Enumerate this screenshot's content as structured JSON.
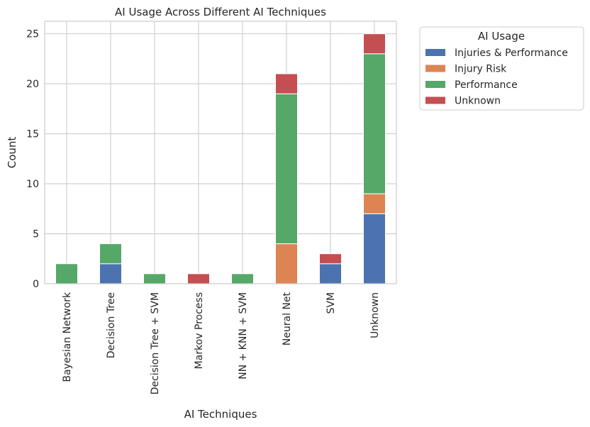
{
  "chart_data": {
    "type": "bar",
    "stacked": true,
    "title": "AI Usage Across Different AI Techniques",
    "xlabel": "AI Techniques",
    "ylabel": "Count",
    "ylim": [
      0,
      26.25
    ],
    "yticks": [
      0,
      5,
      10,
      15,
      20,
      25
    ],
    "grid": true,
    "categories": [
      "Bayesian Network",
      "Decision Tree",
      "Decision Tree + SVM",
      "Markov Process",
      "NN + KNN + SVM",
      "Neural Net",
      "SVM",
      "Unknown"
    ],
    "series": [
      {
        "name": "Injuries & Performance",
        "color": "#4c72b0",
        "values": [
          0,
          2,
          0,
          0,
          0,
          0,
          2,
          7
        ]
      },
      {
        "name": "Injury Risk",
        "color": "#dd8452",
        "values": [
          0,
          0,
          0,
          0,
          0,
          4,
          0,
          2
        ]
      },
      {
        "name": "Performance",
        "color": "#55a868",
        "values": [
          2,
          2,
          1,
          0,
          1,
          15,
          0,
          14
        ]
      },
      {
        "name": "Unknown",
        "color": "#c44e52",
        "values": [
          0,
          0,
          0,
          1,
          0,
          2,
          1,
          2
        ]
      }
    ],
    "legend": {
      "title": "AI Usage",
      "placement": "outside-top-right"
    }
  }
}
